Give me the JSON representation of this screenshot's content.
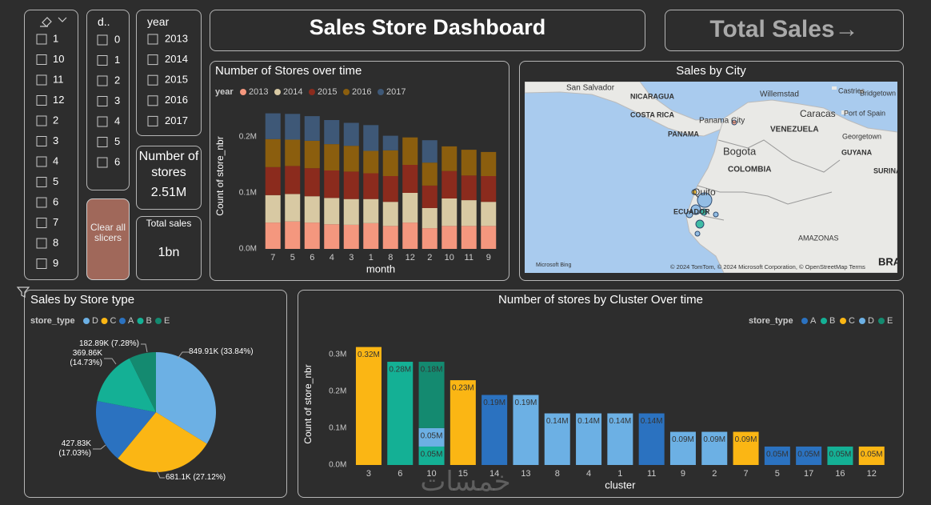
{
  "slicers": [
    {
      "items": [
        "1",
        "10",
        "11",
        "12",
        "2",
        "3",
        "4",
        "5",
        "6",
        "7",
        "8",
        "9"
      ]
    },
    {
      "title": "d..",
      "items": [
        "0",
        "1",
        "2",
        "3",
        "4",
        "5",
        "6"
      ]
    },
    {
      "title": "year",
      "items": [
        "2013",
        "2014",
        "2015",
        "2016",
        "2017"
      ]
    }
  ],
  "cards": [
    {
      "label": "Number of stores",
      "value": "2.51M"
    },
    {
      "label": "Total sales",
      "value": "1bn"
    }
  ],
  "button": "Clear all slicers",
  "title": "Sales Store Dashboard",
  "total_button": "Total Sales→",
  "map": {
    "title": "Sales by City",
    "labels": [
      "San Salvador",
      "NICARAGUA",
      "COSTA RICA",
      "Panama City",
      "PANAMA",
      "Bogota",
      "COLOMBIA",
      "Quito",
      "ECUADOR",
      "Willemstad",
      "Caracas",
      "Castries",
      "Bridgetown",
      "Port of Spain",
      "VENEZUELA",
      "Georgetown",
      "GUYANA",
      "SURINAM",
      "AMAZONAS",
      "BRA",
      "Microsoft Bing",
      "© 2024 TomTom, © 2024 Microsoft Corporation, © OpenStreetMap  Terms"
    ]
  },
  "watermark": "خمسات",
  "chart_data": [
    {
      "type": "bar",
      "stacked": true,
      "title": "Number of Stores over time",
      "legend_title": "year",
      "x_label": "month",
      "y_label": "Count of store_nbr",
      "categories": [
        "7",
        "5",
        "6",
        "4",
        "3",
        "1",
        "8",
        "12",
        "2",
        "10",
        "11",
        "9"
      ],
      "series": [
        {
          "name": "2013",
          "color": "#f4977e",
          "values": [
            47000,
            49000,
            47000,
            44000,
            43000,
            46000,
            41000,
            47000,
            37000,
            41000,
            41000,
            41000
          ]
        },
        {
          "name": "2014",
          "color": "#d8c9a3",
          "values": [
            49000,
            49000,
            47000,
            47000,
            46000,
            43000,
            43000,
            53000,
            36000,
            49000,
            46000,
            43000
          ]
        },
        {
          "name": "2015",
          "color": "#8b2b1d",
          "values": [
            50000,
            50000,
            50000,
            49000,
            49000,
            46000,
            46000,
            50000,
            40000,
            49000,
            44000,
            46000
          ]
        },
        {
          "name": "2016",
          "color": "#8b5e0e",
          "values": [
            50000,
            47000,
            49000,
            47000,
            46000,
            40000,
            46000,
            49000,
            41000,
            44000,
            46000,
            43000
          ]
        },
        {
          "name": "2017",
          "color": "#3e5877",
          "values": [
            46000,
            46000,
            44000,
            43000,
            41000,
            46000,
            26000,
            null,
            40000,
            null,
            null,
            null
          ]
        }
      ],
      "ylim": [
        0,
        260000
      ],
      "yticks": [
        {
          "value": 0,
          "label": "0.0M"
        },
        {
          "value": 100000,
          "label": "0.1M"
        },
        {
          "value": 200000,
          "label": "0.2M"
        }
      ]
    },
    {
      "type": "pie",
      "title": "Sales by Store type",
      "legend_title": "store_type",
      "categories": [
        "D",
        "C",
        "A",
        "B",
        "E"
      ],
      "colors": [
        "#6cb0e4",
        "#fbb614",
        "#2b72c0",
        "#14b095",
        "#148a70"
      ],
      "values": [
        849910,
        681100,
        427830,
        369860,
        182890
      ],
      "value_labels": [
        "849.91K (33.84%)",
        "681.1K (27.12%)",
        "427.83K (17.03%)",
        "369.86K (14.73%)",
        "182.89K (7.28%)"
      ]
    },
    {
      "type": "bar",
      "stacked": true,
      "title": "Number of stores by Cluster Over time",
      "legend_title": "store_type",
      "x_label": "cluster",
      "y_label": "Count of store_nbr",
      "categories": [
        "3",
        "6",
        "10",
        "15",
        "14",
        "13",
        "8",
        "4",
        "1",
        "11",
        "9",
        "2",
        "7",
        "5",
        "17",
        "16",
        "12"
      ],
      "series": [
        {
          "name": "A",
          "color": "#2b72c0",
          "values": [
            null,
            null,
            null,
            null,
            190000,
            null,
            null,
            null,
            null,
            140000,
            null,
            null,
            null,
            50000,
            50000,
            null,
            null
          ],
          "value_labels": [
            null,
            null,
            null,
            null,
            "0.19M",
            null,
            null,
            null,
            null,
            "0.14M",
            null,
            null,
            null,
            "0.05M",
            "0.05M",
            null,
            null
          ]
        },
        {
          "name": "B",
          "color": "#14b095",
          "values": [
            null,
            280000,
            50000,
            null,
            null,
            null,
            null,
            null,
            null,
            null,
            null,
            null,
            null,
            null,
            null,
            50000,
            null
          ],
          "value_labels": [
            null,
            "0.28M",
            "0.05M",
            null,
            null,
            null,
            null,
            null,
            null,
            null,
            null,
            null,
            null,
            null,
            null,
            "0.05M",
            null
          ]
        },
        {
          "name": "C",
          "color": "#fbb614",
          "values": [
            320000,
            null,
            null,
            230000,
            null,
            null,
            null,
            null,
            null,
            null,
            null,
            null,
            90000,
            null,
            null,
            null,
            50000
          ],
          "value_labels": [
            "0.32M",
            null,
            null,
            "0.23M",
            null,
            null,
            null,
            null,
            null,
            null,
            null,
            null,
            "0.09M",
            null,
            null,
            null,
            "0.05M"
          ]
        },
        {
          "name": "D",
          "color": "#6cb0e4",
          "values": [
            null,
            null,
            50000,
            null,
            null,
            190000,
            140000,
            140000,
            140000,
            null,
            90000,
            90000,
            null,
            null,
            null,
            null,
            null
          ],
          "value_labels": [
            null,
            null,
            "0.05M",
            null,
            null,
            "0.19M",
            "0.14M",
            "0.14M",
            "0.14M",
            null,
            "0.09M",
            "0.09M",
            null,
            null,
            null,
            null,
            null
          ]
        },
        {
          "name": "E",
          "color": "#148a70",
          "values": [
            null,
            null,
            180000,
            null,
            null,
            null,
            null,
            null,
            null,
            null,
            null,
            null,
            null,
            null,
            null,
            null,
            null
          ],
          "value_labels": [
            null,
            null,
            "0.18M",
            null,
            null,
            null,
            null,
            null,
            null,
            null,
            null,
            null,
            null,
            null,
            null,
            null,
            null
          ]
        }
      ],
      "ylim": [
        0,
        330000
      ],
      "yticks": [
        {
          "value": 0,
          "label": "0.0M"
        },
        {
          "value": 100000,
          "label": "0.1M"
        },
        {
          "value": 200000,
          "label": "0.2M"
        },
        {
          "value": 300000,
          "label": "0.3M"
        }
      ]
    }
  ]
}
